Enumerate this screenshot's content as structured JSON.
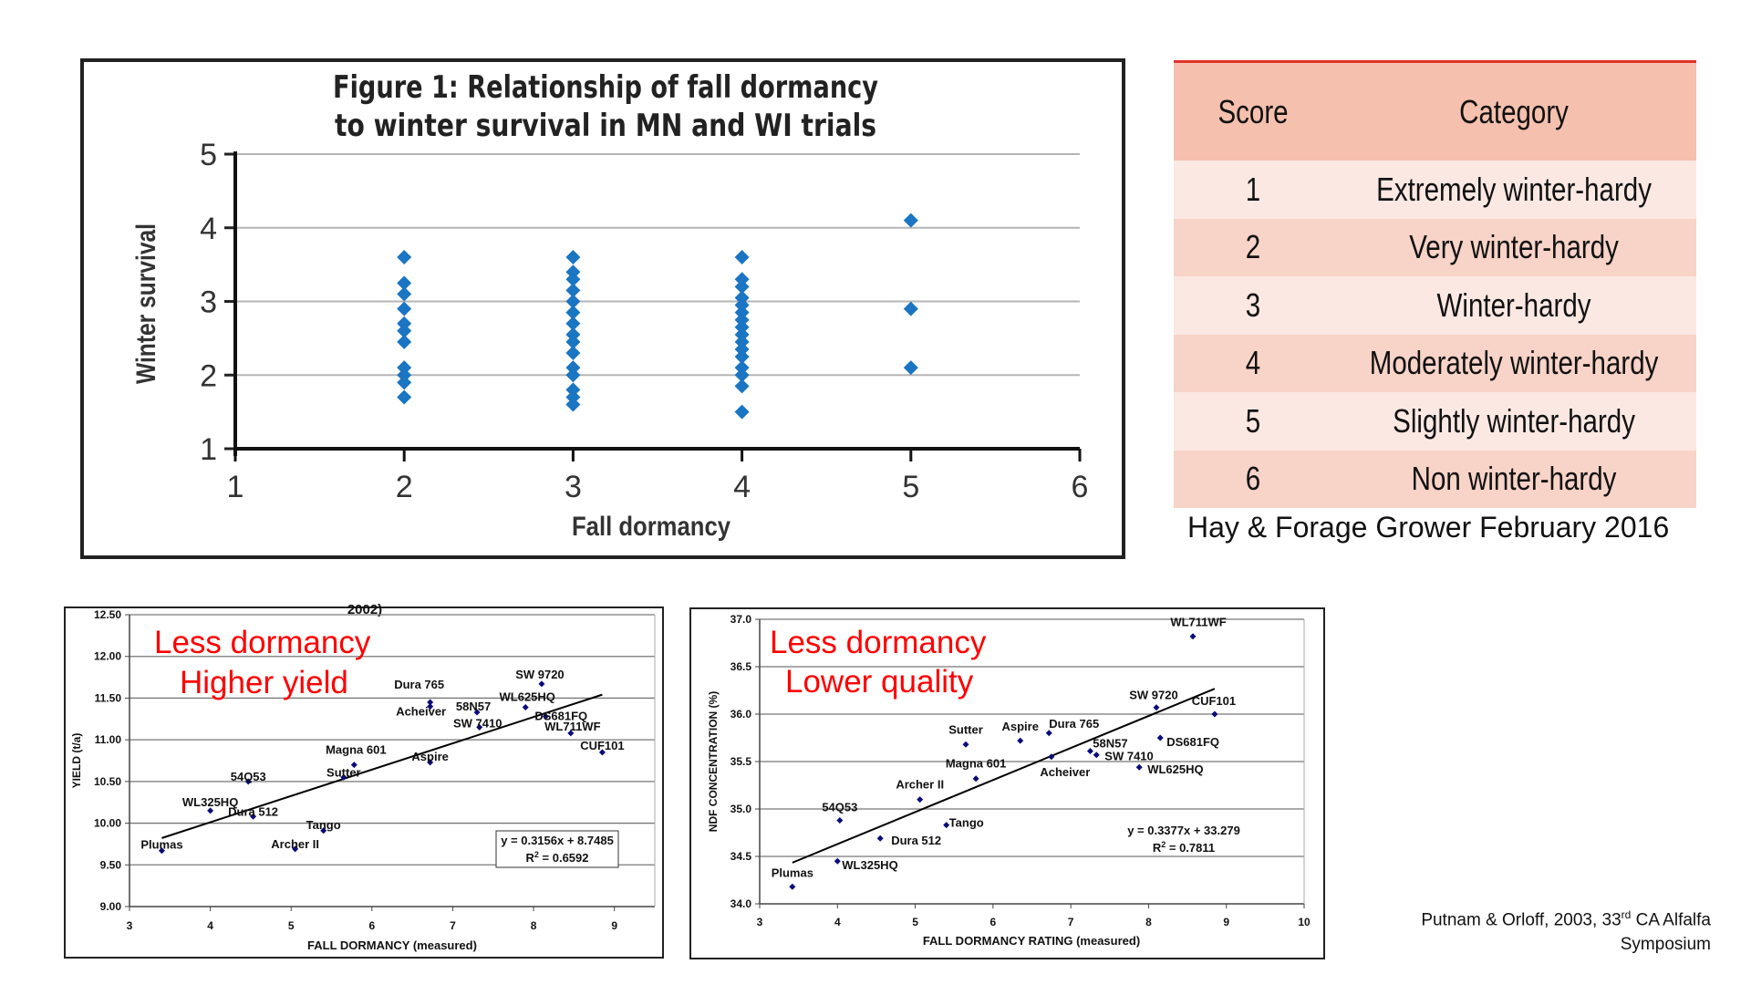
{
  "figure1": {
    "title_line1": "Figure 1: Relationship of fall dormancy",
    "title_line2": "to winter survival in MN and WI trials"
  },
  "table": {
    "headers": [
      "Score",
      "Category"
    ],
    "rows": [
      {
        "score": "1",
        "category": "Extremely winter-hardy"
      },
      {
        "score": "2",
        "category": "Very winter-hardy"
      },
      {
        "score": "3",
        "category": "Winter-hardy"
      },
      {
        "score": "4",
        "category": "Moderately winter-hardy"
      },
      {
        "score": "5",
        "category": "Slightly winter-hardy"
      },
      {
        "score": "6",
        "category": "Non winter-hardy"
      }
    ],
    "source": "Hay & Forage Grower February 2016",
    "colors": {
      "header": "#f5c0ad",
      "row_light": "#fbe8e3",
      "row_dark": "#f8d3c7",
      "rule": "#e0322a"
    }
  },
  "citation": {
    "line1": "Putnam & Orloff, 2003, 33",
    "sup": "rd",
    "line1_rest": " CA Alfalfa",
    "line2": "Symposium"
  },
  "chart_data": [
    {
      "type": "scatter",
      "title": "Figure 1: Relationship of fall dormancy to winter survival in MN and WI trials",
      "xlabel": "Fall dormancy",
      "ylabel": "Winter survival",
      "xlim": [
        1,
        6
      ],
      "ylim": [
        1,
        5
      ],
      "xticks": [
        "1",
        "2",
        "3",
        "4",
        "5",
        "6"
      ],
      "yticks": [
        "1",
        "2",
        "3",
        "4",
        "5"
      ],
      "grid": true,
      "color": "#1a75c2",
      "points": [
        [
          2,
          3.6
        ],
        [
          2,
          3.25
        ],
        [
          2,
          3.1
        ],
        [
          2,
          2.9
        ],
        [
          2,
          2.7
        ],
        [
          2,
          2.6
        ],
        [
          2,
          2.45
        ],
        [
          2,
          2.1
        ],
        [
          2,
          2.0
        ],
        [
          2,
          1.9
        ],
        [
          2,
          1.7
        ],
        [
          3,
          3.6
        ],
        [
          3,
          3.4
        ],
        [
          3,
          3.3
        ],
        [
          3,
          3.15
        ],
        [
          3,
          3.0
        ],
        [
          3,
          2.85
        ],
        [
          3,
          2.7
        ],
        [
          3,
          2.55
        ],
        [
          3,
          2.45
        ],
        [
          3,
          2.3
        ],
        [
          3,
          2.1
        ],
        [
          3,
          2.0
        ],
        [
          3,
          1.8
        ],
        [
          3,
          1.7
        ],
        [
          3,
          1.6
        ],
        [
          4,
          3.6
        ],
        [
          4,
          3.3
        ],
        [
          4,
          3.2
        ],
        [
          4,
          3.05
        ],
        [
          4,
          2.95
        ],
        [
          4,
          2.85
        ],
        [
          4,
          2.75
        ],
        [
          4,
          2.65
        ],
        [
          4,
          2.55
        ],
        [
          4,
          2.45
        ],
        [
          4,
          2.35
        ],
        [
          4,
          2.25
        ],
        [
          4,
          2.1
        ],
        [
          4,
          2.0
        ],
        [
          4,
          1.85
        ],
        [
          4,
          1.5
        ],
        [
          5,
          4.1
        ],
        [
          5,
          2.9
        ],
        [
          5,
          2.1
        ]
      ]
    },
    {
      "type": "scatter",
      "title_fragment": "2002)",
      "xlabel": "FALL DORMANCY (measured)",
      "ylabel": "YIELD (t/a)",
      "xlim": [
        3,
        9.5
      ],
      "ylim": [
        9.0,
        12.5
      ],
      "xticks": [
        "3",
        "4",
        "5",
        "6",
        "7",
        "8",
        "9"
      ],
      "yticks": [
        "9.00",
        "9.50",
        "10.00",
        "10.50",
        "11.00",
        "11.50",
        "12.00",
        "12.50"
      ],
      "annotations": [
        "Less dormancy",
        "Higher yield"
      ],
      "annotation_color": "#ff0000",
      "trendline": {
        "slope": 0.3156,
        "intercept": 8.7485,
        "x_range": [
          3.4,
          8.85
        ],
        "equation": "y = 0.3156x + 8.7485",
        "r2_label": "R",
        "r2_value": " = 0.6592"
      },
      "points": [
        {
          "label": "Plumas",
          "x": 3.4,
          "y": 9.67
        },
        {
          "label": "WL325HQ",
          "x": 4.0,
          "y": 10.15
        },
        {
          "label": "54Q53",
          "x": 4.47,
          "y": 10.5
        },
        {
          "label": "Dura 512",
          "x": 4.53,
          "y": 10.08
        },
        {
          "label": "Archer II",
          "x": 5.05,
          "y": 9.69
        },
        {
          "label": "Tango",
          "x": 5.4,
          "y": 9.91
        },
        {
          "label": "Sutter",
          "x": 5.65,
          "y": 10.55
        },
        {
          "label": "Magna 601",
          "x": 5.78,
          "y": 10.7
        },
        {
          "label": "Aspire",
          "x": 6.72,
          "y": 10.73
        },
        {
          "label": "Dura 765",
          "x": 6.72,
          "y": 11.45
        },
        {
          "label": "Acheiver",
          "x": 6.72,
          "y": 11.4
        },
        {
          "label": "58N57",
          "x": 7.3,
          "y": 11.33
        },
        {
          "label": "SW 7410",
          "x": 7.33,
          "y": 11.15
        },
        {
          "label": "WL625HQ",
          "x": 7.9,
          "y": 11.39
        },
        {
          "label": "SW 9720",
          "x": 8.1,
          "y": 11.67
        },
        {
          "label": "DS681FQ",
          "x": 8.15,
          "y": 11.28
        },
        {
          "label": "WL711WF",
          "x": 8.46,
          "y": 11.08
        },
        {
          "label": "CUF101",
          "x": 8.85,
          "y": 10.85
        }
      ]
    },
    {
      "type": "scatter",
      "xlabel": "FALL DORMANCY RATING (measured)",
      "ylabel": "NDF CONCENTRATION (%)",
      "xlim": [
        3,
        10
      ],
      "ylim": [
        34.0,
        37.0
      ],
      "xticks": [
        "3",
        "4",
        "5",
        "6",
        "7",
        "8",
        "9",
        "10"
      ],
      "yticks": [
        "34.0",
        "34.5",
        "35.0",
        "35.5",
        "36.0",
        "36.5",
        "37.0"
      ],
      "annotations": [
        "Less dormancy",
        "Lower quality"
      ],
      "annotation_color": "#ff0000",
      "trendline": {
        "slope": 0.3377,
        "intercept": 33.279,
        "x_range": [
          3.42,
          8.85
        ],
        "equation": "y = 0.3377x + 33.279",
        "r2_label": "R",
        "r2_value": " = 0.7811"
      },
      "points": [
        {
          "label": "Plumas",
          "x": 3.42,
          "y": 34.18
        },
        {
          "label": "WL325HQ",
          "x": 4.0,
          "y": 34.45
        },
        {
          "label": "54Q53",
          "x": 4.03,
          "y": 34.88
        },
        {
          "label": "Dura 512",
          "x": 4.55,
          "y": 34.69
        },
        {
          "label": "Archer II",
          "x": 5.06,
          "y": 35.1
        },
        {
          "label": "Tango",
          "x": 5.4,
          "y": 34.83
        },
        {
          "label": "Sutter",
          "x": 5.65,
          "y": 35.68
        },
        {
          "label": "Magna 601",
          "x": 5.78,
          "y": 35.32
        },
        {
          "label": "Aspire",
          "x": 6.35,
          "y": 35.72
        },
        {
          "label": "Dura 765",
          "x": 6.72,
          "y": 35.8
        },
        {
          "label": "Acheiver",
          "x": 6.75,
          "y": 35.55
        },
        {
          "label": "58N57",
          "x": 7.25,
          "y": 35.61
        },
        {
          "label": "SW 7410",
          "x": 7.33,
          "y": 35.57
        },
        {
          "label": "WL625HQ",
          "x": 7.88,
          "y": 35.44
        },
        {
          "label": "SW 9720",
          "x": 8.1,
          "y": 36.07
        },
        {
          "label": "DS681FQ",
          "x": 8.15,
          "y": 35.75
        },
        {
          "label": "WL711WF",
          "x": 8.57,
          "y": 36.82
        },
        {
          "label": "CUF101",
          "x": 8.85,
          "y": 36.0
        }
      ]
    }
  ]
}
